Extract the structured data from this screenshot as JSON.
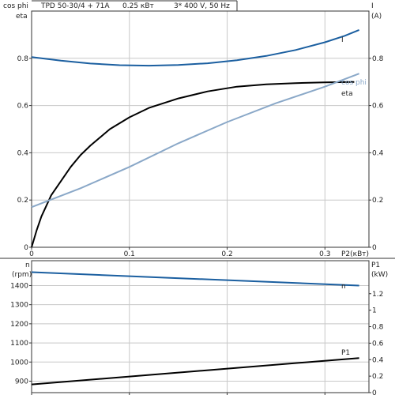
{
  "header": {
    "model": "TPD 50-30/4 + 71A",
    "power": "0.25 кВт",
    "voltage": "3* 400 V, 50 Hz"
  },
  "colors": {
    "grid": "#c8c8c8",
    "axis": "#333333",
    "current": "#1b5fa0",
    "eta": "#000000",
    "cos_phi": "#8aa8c8",
    "speed": "#1b5fa0",
    "p1": "#000000"
  },
  "chart_data": [
    {
      "type": "line",
      "x_label": "P2(кВт)",
      "x_ticks": [
        "0",
        "0.1",
        "0.2",
        "0.3"
      ],
      "xlim": [
        0,
        0.345
      ],
      "left_axis": {
        "label_top": "cos phi",
        "label_bottom": "eta",
        "ylim": [
          0,
          1.0
        ],
        "ticks": [
          "0",
          "0.2",
          "0.4",
          "0.6",
          "0.8"
        ]
      },
      "right_axis": {
        "label_top": "I",
        "label_bottom": "(A)",
        "ylim": [
          0,
          1.0
        ],
        "ticks": [
          "0",
          "0.2",
          "0.4",
          "0.6",
          "0.8"
        ]
      },
      "grid": true,
      "series": [
        {
          "name": "I",
          "axis": "right",
          "x": [
            0,
            0.03,
            0.06,
            0.09,
            0.12,
            0.15,
            0.18,
            0.21,
            0.24,
            0.27,
            0.3,
            0.32,
            0.335
          ],
          "y": [
            0.805,
            0.79,
            0.778,
            0.771,
            0.769,
            0.772,
            0.779,
            0.792,
            0.81,
            0.835,
            0.868,
            0.895,
            0.92
          ]
        },
        {
          "name": "eta",
          "axis": "left",
          "x": [
            0,
            0.005,
            0.01,
            0.02,
            0.03,
            0.04,
            0.05,
            0.06,
            0.08,
            0.1,
            0.12,
            0.15,
            0.18,
            0.21,
            0.24,
            0.27,
            0.3,
            0.33
          ],
          "y": [
            0,
            0.07,
            0.13,
            0.22,
            0.28,
            0.34,
            0.39,
            0.43,
            0.5,
            0.55,
            0.59,
            0.63,
            0.66,
            0.68,
            0.69,
            0.695,
            0.698,
            0.7
          ]
        },
        {
          "name": "cos phi",
          "axis": "left",
          "x": [
            0,
            0.05,
            0.1,
            0.15,
            0.2,
            0.25,
            0.3,
            0.335
          ],
          "y": [
            0.17,
            0.25,
            0.34,
            0.44,
            0.53,
            0.61,
            0.68,
            0.735
          ]
        }
      ]
    },
    {
      "type": "line",
      "xlim": [
        0,
        0.345
      ],
      "left_axis": {
        "label_top": "n",
        "label_bottom": "(rpm)",
        "ylim": [
          840,
          1530
        ],
        "ticks": [
          "900",
          "1000",
          "1100",
          "1200",
          "1300",
          "1400"
        ]
      },
      "right_axis": {
        "label_top": "P1",
        "label_bottom": "(kW)",
        "ylim": [
          0,
          1.6
        ],
        "ticks": [
          "0",
          "0.2",
          "0.4",
          "0.6",
          "0.8",
          "1",
          "1.2"
        ]
      },
      "grid": true,
      "series": [
        {
          "name": "n",
          "axis": "left",
          "x": [
            0,
            0.335
          ],
          "y": [
            1470,
            1400
          ]
        },
        {
          "name": "P1",
          "axis": "right",
          "x": [
            0,
            0.335
          ],
          "y": [
            0.1,
            0.42
          ]
        }
      ]
    }
  ]
}
